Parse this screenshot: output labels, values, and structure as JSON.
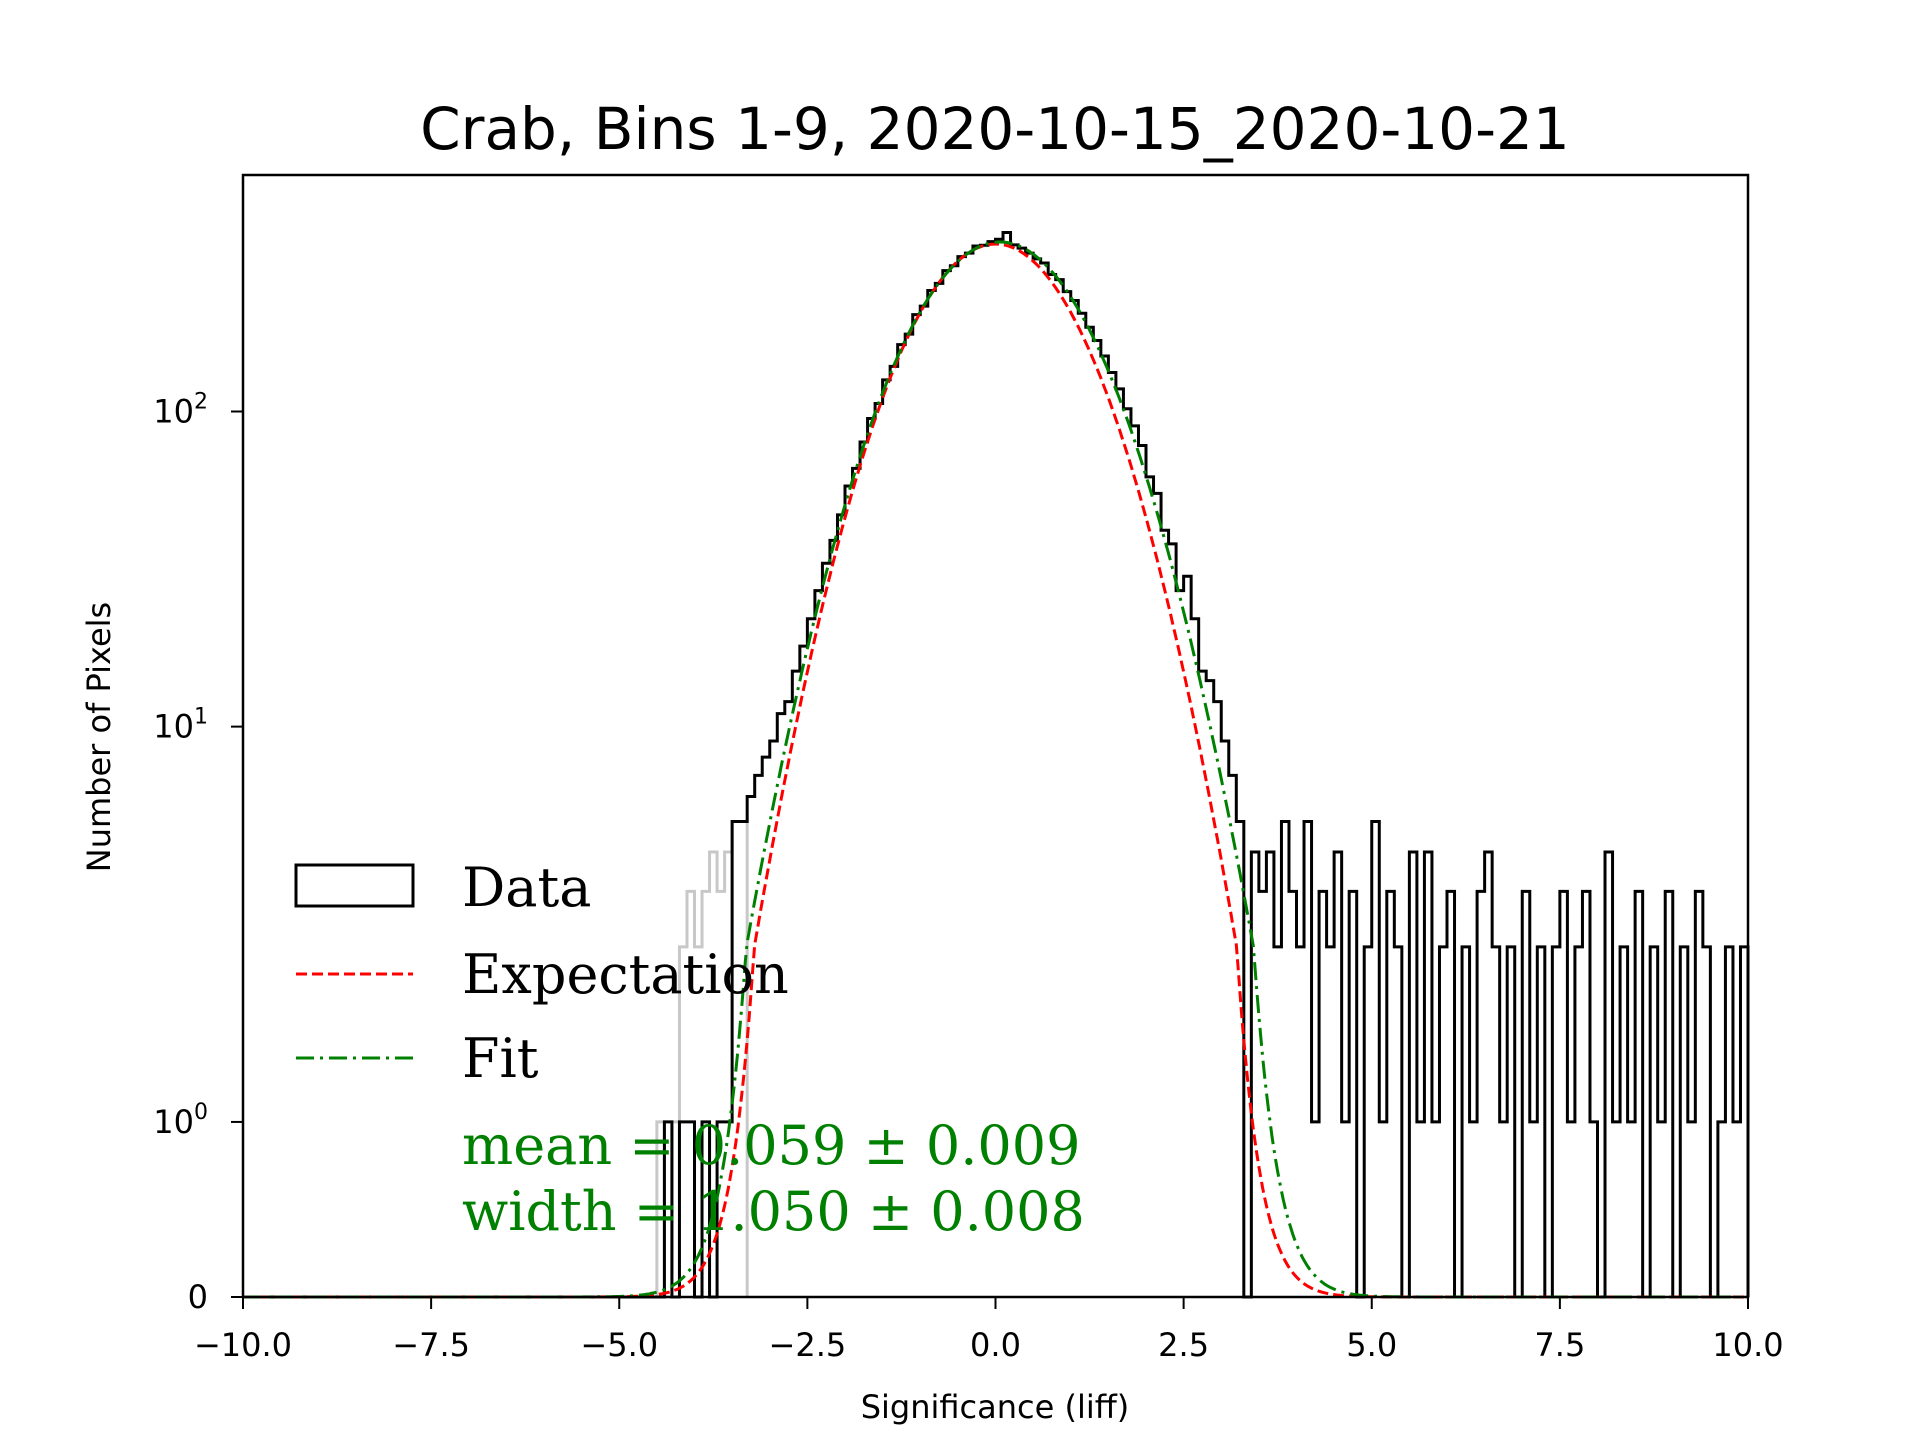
{
  "chart_data": {
    "type": "histogram",
    "title": "Crab, Bins 1-9, 2020-10-15_2020-10-21",
    "xlabel": "Significance (liff)",
    "ylabel": "Number of Pixels",
    "xlim": [
      -10,
      10
    ],
    "ylim": [
      0,
      563
    ],
    "yscale": "symlog",
    "ylinthresh": 2,
    "xticks": [
      "−10.0",
      "−7.5",
      "−5.0",
      "−2.5",
      "0.0",
      "2.5",
      "5.0",
      "7.5",
      "10.0"
    ],
    "xtick_values": [
      -10,
      -7.5,
      -5,
      -2.5,
      0,
      2.5,
      5,
      7.5,
      10
    ],
    "yticks": [
      {
        "value": 0,
        "base": "0",
        "exp": ""
      },
      {
        "value": 1,
        "base": "10",
        "exp": "0"
      },
      {
        "value": 10,
        "base": "10",
        "exp": "1"
      },
      {
        "value": 100,
        "base": "10",
        "exp": "2"
      }
    ],
    "histogram": {
      "name": "Data",
      "bin_start": -10,
      "bin_width": 0.1,
      "color": "#000000",
      "values": [
        0,
        0,
        0,
        0,
        0,
        0,
        0,
        0,
        0,
        0,
        0,
        0,
        0,
        0,
        0,
        0,
        0,
        0,
        0,
        0,
        0,
        0,
        0,
        0,
        0,
        0,
        0,
        0,
        0,
        0,
        0,
        0,
        0,
        0,
        0,
        0,
        0,
        0,
        0,
        0,
        0,
        0,
        0,
        0,
        0,
        0,
        0,
        0,
        0,
        0,
        0,
        0,
        0,
        0,
        0,
        0,
        1,
        0,
        1,
        1,
        0,
        1,
        0,
        1,
        1,
        5,
        5,
        6,
        7,
        8,
        9,
        11,
        12,
        15,
        18,
        22,
        27,
        33,
        39,
        47,
        58,
        66,
        80,
        95,
        106,
        126,
        139,
        163,
        176,
        203,
        216,
        242,
        255,
        280,
        290,
        310,
        318,
        335,
        337,
        346,
        352,
        370,
        338,
        330,
        318,
        305,
        296,
        272,
        262,
        240,
        225,
        205,
        185,
        168,
        150,
        133,
        118,
        102,
        90,
        78,
        62,
        55,
        42,
        38,
        27,
        30,
        22,
        15,
        14,
        12,
        9,
        7,
        5,
        0,
        4,
        3,
        4,
        2,
        5,
        3,
        2,
        5,
        1,
        3,
        2,
        4,
        1,
        3,
        0,
        2,
        5,
        1,
        3,
        2,
        0,
        4,
        1,
        4,
        1,
        2,
        3,
        0,
        2,
        1,
        3,
        4,
        2,
        1,
        2,
        0,
        3,
        1,
        2,
        0,
        2,
        3,
        1,
        2,
        3,
        1,
        0,
        4,
        1,
        2,
        1,
        3,
        0,
        2,
        1,
        3,
        0,
        2,
        1,
        3,
        2,
        0,
        1,
        2,
        1,
        2
      ]
    },
    "masked_histogram": {
      "bin_start": -4.5,
      "bin_width": 0.1,
      "color": "#c8c8c8",
      "values": [
        1,
        0,
        1,
        2,
        3,
        2,
        3,
        4,
        3,
        4,
        5,
        5
      ]
    },
    "curves": [
      {
        "name": "Expectation",
        "color": "#ff0000",
        "style": "dashed",
        "amplitude": 340,
        "mean": 0.0,
        "sigma": 1.0
      },
      {
        "name": "Fit",
        "color": "#008000",
        "style": "dashdot",
        "amplitude": 345,
        "mean": 0.059,
        "sigma": 1.05
      }
    ],
    "legend": {
      "placement": "lower-left",
      "entries": [
        "Data",
        "Expectation",
        "Fit"
      ]
    },
    "annotations": {
      "mean": "mean = 0.059 ± 0.009",
      "width": "width = 1.050 ± 0.008"
    }
  }
}
